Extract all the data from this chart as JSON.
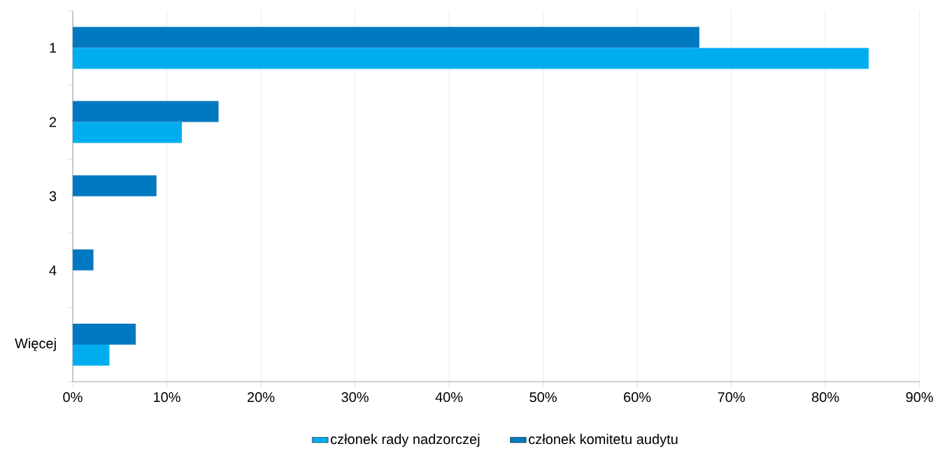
{
  "chart_data": {
    "type": "bar",
    "orientation": "horizontal",
    "categories": [
      "1",
      "2",
      "3",
      "4",
      "Więcej"
    ],
    "series": [
      {
        "name": "członek rady nadzorczej",
        "color": "#00aeef",
        "values": [
          84.6,
          11.6,
          0,
          0,
          3.9
        ]
      },
      {
        "name": "członek komitetu audytu",
        "color": "#0079c1",
        "values": [
          66.6,
          15.5,
          8.9,
          2.2,
          6.7
        ]
      }
    ],
    "xlim": [
      0,
      90
    ],
    "xticks": [
      {
        "value": 0,
        "label": "0%"
      },
      {
        "value": 10,
        "label": "10%"
      },
      {
        "value": 20,
        "label": "20%"
      },
      {
        "value": 30,
        "label": "30%"
      },
      {
        "value": 40,
        "label": "40%"
      },
      {
        "value": 50,
        "label": "50%"
      },
      {
        "value": 60,
        "label": "60%"
      },
      {
        "value": 70,
        "label": "70%"
      },
      {
        "value": 80,
        "label": "80%"
      },
      {
        "value": 90,
        "label": "90%"
      }
    ],
    "grid": "x",
    "legend": "bottom"
  }
}
